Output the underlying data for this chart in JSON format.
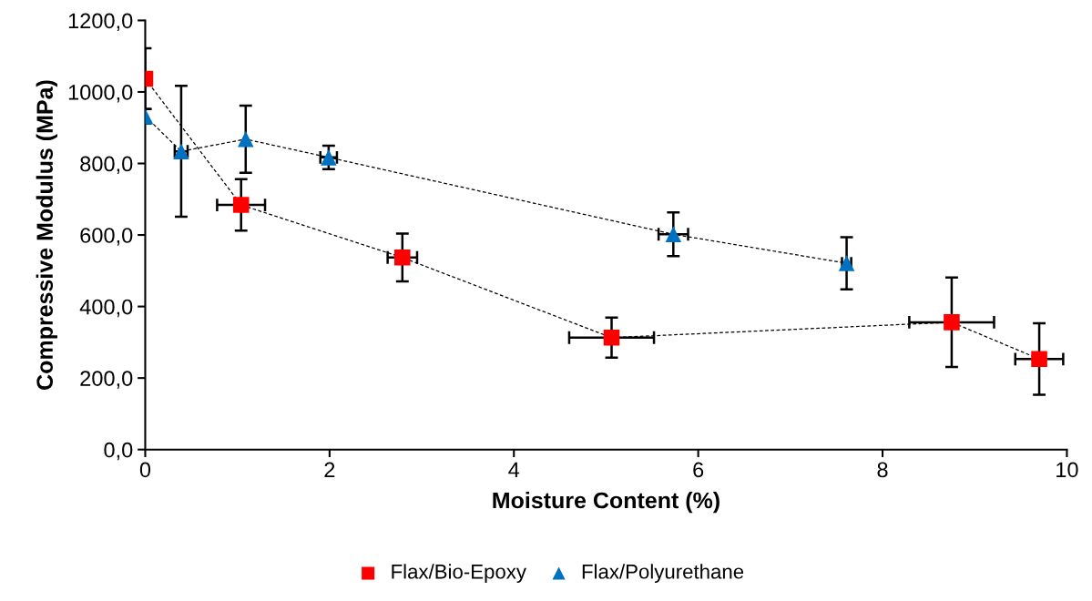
{
  "chart_data": {
    "type": "line",
    "xlabel": "Moisture Content (%)",
    "ylabel": "Compressive Modulus (MPa)",
    "xlim": [
      0,
      10
    ],
    "xticks": [
      0,
      2,
      4,
      6,
      8,
      10
    ],
    "ylim": [
      0,
      1200
    ],
    "yticks": [
      {
        "value": 0,
        "label": "0,0"
      },
      {
        "value": 200,
        "label": "200,0"
      },
      {
        "value": 400,
        "label": "400,0"
      },
      {
        "value": 600,
        "label": "600,0"
      },
      {
        "value": 800,
        "label": "800,0"
      },
      {
        "value": 1000,
        "label": "1000,0"
      },
      {
        "value": 1200,
        "label": "1200,0"
      }
    ],
    "grid": false,
    "legend": "bottom",
    "line_style": "dashed",
    "series": [
      {
        "name": "Flax/Bio-Epoxy",
        "color": "#ff0000",
        "marker": "square",
        "x": [
          0,
          1.04,
          2.79,
          5.06,
          8.75,
          9.7
        ],
        "values": [
          1037,
          684,
          537,
          313,
          356,
          253
        ],
        "errors": [
          85,
          72,
          67,
          56,
          125,
          100
        ],
        "xerrors": [
          null,
          0.26,
          0.16,
          0.46,
          0.46,
          0.26
        ]
      },
      {
        "name": "Flax/Polyurethane",
        "color": "#0070c0",
        "marker": "triangle",
        "x": [
          0,
          0.39,
          1.09,
          1.99,
          5.73,
          7.61
        ],
        "values": [
          932,
          834,
          868,
          817,
          602,
          521
        ],
        "errors": [
          20,
          183,
          94,
          33,
          61,
          73
        ],
        "xerrors": [
          null,
          0.07,
          null,
          0.09,
          0.16,
          0.05
        ]
      }
    ]
  }
}
